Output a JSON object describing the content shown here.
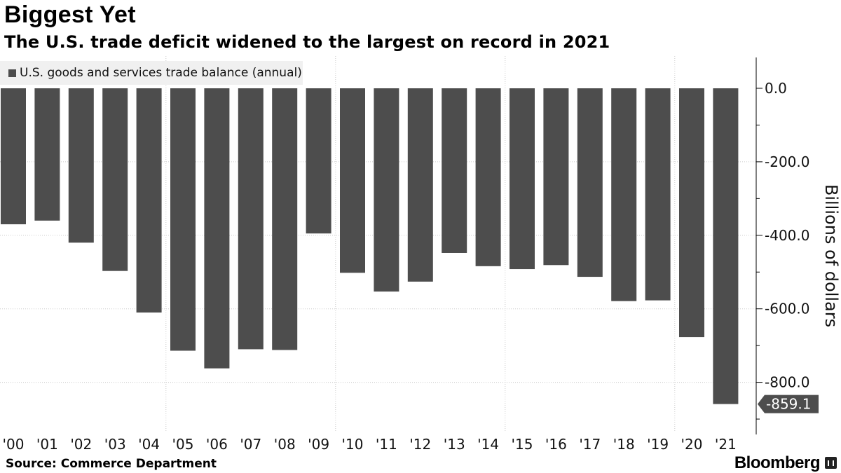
{
  "title": "Biggest Yet",
  "subtitle": "The U.S. trade deficit widened to the largest on record in 2021",
  "source": "Source: Commerce Department",
  "brand": "Bloomberg",
  "colors": {
    "bar": "#4d4d4d",
    "grid": "#cccccc",
    "axis": "#000000",
    "callout_bg": "#4d4d4d",
    "legend_bg": "#f0f0f0"
  },
  "chart_data": {
    "type": "bar",
    "categories": [
      "'00",
      "'01",
      "'02",
      "'03",
      "'04",
      "'05",
      "'06",
      "'07",
      "'08",
      "'09",
      "'10",
      "'11",
      "'12",
      "'13",
      "'14",
      "'15",
      "'16",
      "'17",
      "'18",
      "'19",
      "'20",
      "'21"
    ],
    "series": [
      {
        "name": "U.S. goods and services trade balance (annual)",
        "values": [
          -370,
          -360,
          -420,
          -497,
          -610,
          -714,
          -762,
          -710,
          -712,
          -395,
          -502,
          -553,
          -526,
          -448,
          -484,
          -492,
          -481,
          -513,
          -579,
          -577,
          -677,
          -859.1
        ]
      }
    ],
    "ylabel": "Billions of dollars",
    "ylim": [
      -900,
      80
    ],
    "yticks": [
      0,
      -200,
      -400,
      -600,
      -800
    ],
    "ytick_labels": [
      "0.0",
      "-200.0",
      "-400.0",
      "-600.0",
      "-800.0"
    ],
    "y_axis_side": "right",
    "grid": "dotted horizontal and vertical",
    "legend_position": "top-left",
    "last_value_callout": "-859.1"
  }
}
